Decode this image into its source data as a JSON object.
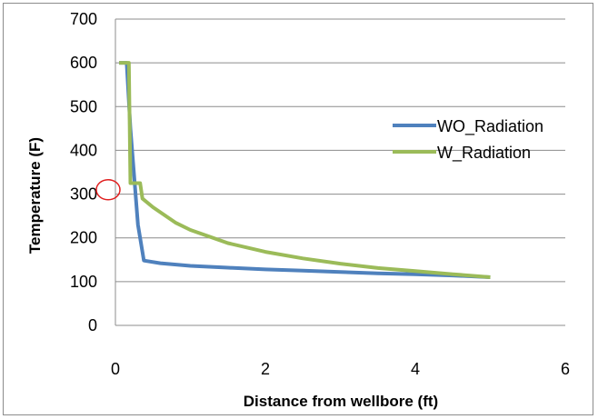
{
  "chart_data": {
    "type": "line",
    "title": "",
    "xlabel": "Distance from wellbore (ft)",
    "ylabel": "Temperature (F)",
    "xlim": [
      0,
      6
    ],
    "ylim": [
      0,
      700
    ],
    "xticks": [
      0,
      2,
      4,
      6
    ],
    "yticks": [
      0,
      100,
      200,
      300,
      400,
      500,
      600,
      700
    ],
    "grid": "horizontal",
    "legend_position": "right",
    "series": [
      {
        "name": "WO_Radiation",
        "color": "#4f81bd",
        "points": [
          [
            0.05,
            600
          ],
          [
            0.15,
            600
          ],
          [
            0.2,
            450
          ],
          [
            0.3,
            230
          ],
          [
            0.38,
            148
          ],
          [
            0.6,
            142
          ],
          [
            1.0,
            136
          ],
          [
            1.5,
            132
          ],
          [
            2.0,
            128
          ],
          [
            2.5,
            125
          ],
          [
            3.0,
            122
          ],
          [
            3.5,
            119
          ],
          [
            4.0,
            117
          ],
          [
            4.5,
            114
          ],
          [
            5.0,
            110
          ]
        ]
      },
      {
        "name": "W_Radiation",
        "color": "#9bbb59",
        "points": [
          [
            0.05,
            600
          ],
          [
            0.18,
            600
          ],
          [
            0.2,
            325
          ],
          [
            0.33,
            325
          ],
          [
            0.36,
            290
          ],
          [
            0.5,
            270
          ],
          [
            0.8,
            235
          ],
          [
            1.0,
            218
          ],
          [
            1.5,
            188
          ],
          [
            2.0,
            168
          ],
          [
            2.5,
            153
          ],
          [
            3.0,
            141
          ],
          [
            3.5,
            131
          ],
          [
            4.0,
            124
          ],
          [
            4.5,
            117
          ],
          [
            5.0,
            110
          ]
        ]
      }
    ],
    "annotation": {
      "shape": "ellipse",
      "color": "#e02020",
      "x": -0.1,
      "y": 310
    }
  }
}
